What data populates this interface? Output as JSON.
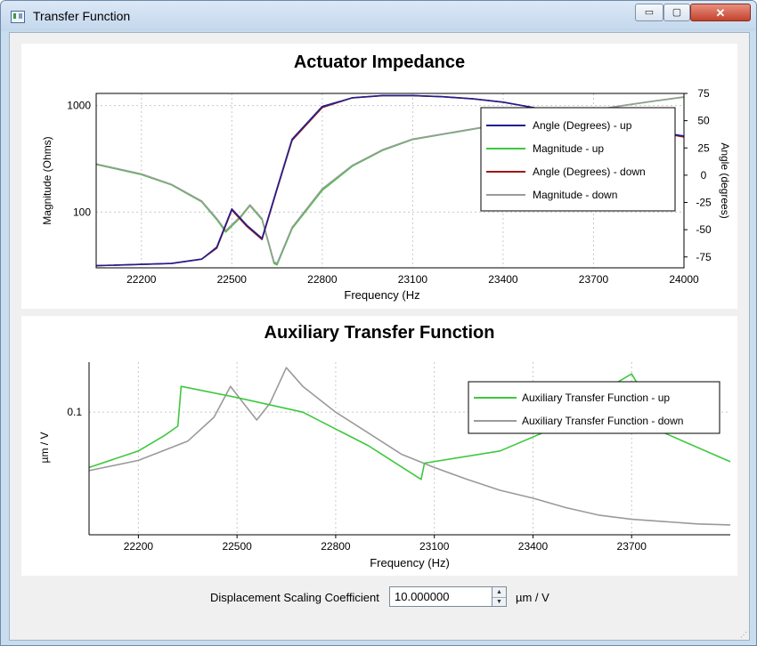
{
  "window": {
    "title": "Transfer Function",
    "min_label": "▭",
    "max_label": "▢",
    "close_label": "✕"
  },
  "charts": {
    "impedance": {
      "title": "Actuator Impedance",
      "xlabel": "Frequency (Hz",
      "ylabel_left": "Magnitude (Ohms)",
      "ylabel_right": "Angle (degrees)"
    },
    "auxiliary": {
      "title": "Auxiliary Transfer Function",
      "xlabel": "Frequency (Hz)",
      "ylabel": "µm / V"
    }
  },
  "chart_data": [
    {
      "type": "line",
      "title": "Actuator Impedance",
      "xlabel": "Frequency (Hz",
      "ylabel": "Magnitude (Ohms)",
      "y2label": "Angle (degrees)",
      "xlim": [
        22050,
        24000
      ],
      "ylim_log": [
        30,
        1300
      ],
      "y2lim": [
        -85,
        75
      ],
      "x_ticks": [
        22200,
        22500,
        22800,
        23100,
        23400,
        23700,
        24000
      ],
      "y_ticks": [
        "1000",
        "100"
      ],
      "y2_ticks": [
        75,
        50,
        25,
        0,
        -25,
        -50,
        -75
      ],
      "grid": true,
      "legend": "top-right",
      "series": [
        {
          "name": "Angle (Degrees) - up",
          "color": "#1f1f8f",
          "axis": "right",
          "x": [
            22050,
            22300,
            22400,
            22450,
            22500,
            22550,
            22600,
            22650,
            22700,
            22800,
            22900,
            23000,
            23100,
            23200,
            23300,
            23400,
            23500,
            23600,
            23700,
            23800,
            23900,
            24000
          ],
          "y": [
            -83,
            -81,
            -77,
            -66,
            -31,
            -46,
            -58,
            -12,
            33,
            63,
            71,
            73,
            73,
            72,
            70,
            67,
            62,
            56,
            49,
            44,
            40,
            36
          ]
        },
        {
          "name": "Magnitude - up",
          "color": "#3ec83e",
          "axis": "left",
          "x": [
            22050,
            22200,
            22300,
            22400,
            22450,
            22480,
            22530,
            22560,
            22600,
            22640,
            22650,
            22700,
            22800,
            22900,
            23000,
            23100,
            23300,
            23500,
            23700,
            23800,
            23900,
            24000
          ],
          "y": [
            280,
            225,
            180,
            125,
            85,
            65,
            90,
            115,
            85,
            33,
            32,
            70,
            160,
            270,
            380,
            480,
            600,
            750,
            900,
            1000,
            1100,
            1200
          ]
        },
        {
          "name": "Angle (Degrees) - down",
          "color": "#a01818",
          "axis": "right",
          "x": [
            22050,
            22300,
            22400,
            22450,
            22500,
            22550,
            22600,
            22650,
            22700,
            22800,
            22900,
            23000,
            23100,
            23200,
            23300,
            23400,
            23500,
            23600,
            23700,
            23800,
            23900,
            24000
          ],
          "y": [
            -83,
            -81,
            -77,
            -67,
            -32,
            -47,
            -59,
            -13,
            32,
            62,
            71,
            73,
            73,
            72,
            70,
            67,
            62,
            56,
            49,
            44,
            40,
            35
          ]
        },
        {
          "name": "Magnitude - down",
          "color": "#9a9a9a",
          "axis": "left",
          "x": [
            22050,
            22200,
            22300,
            22400,
            22450,
            22480,
            22530,
            22560,
            22600,
            22640,
            22650,
            22700,
            22800,
            22900,
            23000,
            23100,
            23300,
            23500,
            23700,
            23800,
            23900,
            24000
          ],
          "y": [
            283,
            228,
            182,
            127,
            87,
            67,
            92,
            117,
            87,
            34,
            33,
            72,
            165,
            275,
            385,
            485,
            605,
            755,
            905,
            1005,
            1105,
            1205
          ]
        }
      ]
    },
    {
      "type": "line",
      "title": "Auxiliary Transfer Function",
      "xlabel": "Frequency (Hz)",
      "ylabel": "µm / V",
      "xlim": [
        22050,
        24000
      ],
      "ylim_log": [
        0.008,
        0.28
      ],
      "x_ticks": [
        22200,
        22500,
        22800,
        23100,
        23400,
        23700
      ],
      "y_ticks": [
        "0.1"
      ],
      "grid": true,
      "legend": "top-right",
      "series": [
        {
          "name": "Auxiliary Transfer Function - up",
          "color": "#3ec83e",
          "x": [
            22050,
            22200,
            22280,
            22320,
            22330,
            22500,
            22700,
            22900,
            23060,
            23070,
            23300,
            23500,
            23650,
            23700,
            23740,
            23800,
            24000
          ],
          "y": [
            0.032,
            0.045,
            0.062,
            0.075,
            0.17,
            0.135,
            0.1,
            0.05,
            0.025,
            0.035,
            0.045,
            0.08,
            0.18,
            0.22,
            0.14,
            0.065,
            0.036
          ]
        },
        {
          "name": "Auxiliary Transfer Function - down",
          "color": "#9a9a9a",
          "x": [
            22050,
            22200,
            22350,
            22430,
            22480,
            22520,
            22560,
            22600,
            22650,
            22700,
            22800,
            22900,
            23000,
            23100,
            23200,
            23300,
            23400,
            23500,
            23600,
            23700,
            23800,
            23900,
            24000
          ],
          "y": [
            0.03,
            0.037,
            0.055,
            0.09,
            0.17,
            0.12,
            0.085,
            0.12,
            0.25,
            0.17,
            0.1,
            0.065,
            0.042,
            0.032,
            0.025,
            0.02,
            0.017,
            0.014,
            0.012,
            0.011,
            0.0105,
            0.01,
            0.0098
          ]
        }
      ]
    }
  ],
  "controls": {
    "coef_label": "Displacement Scaling Coefficient",
    "coef_value": "10.000000",
    "coef_unit": "µm / V"
  }
}
